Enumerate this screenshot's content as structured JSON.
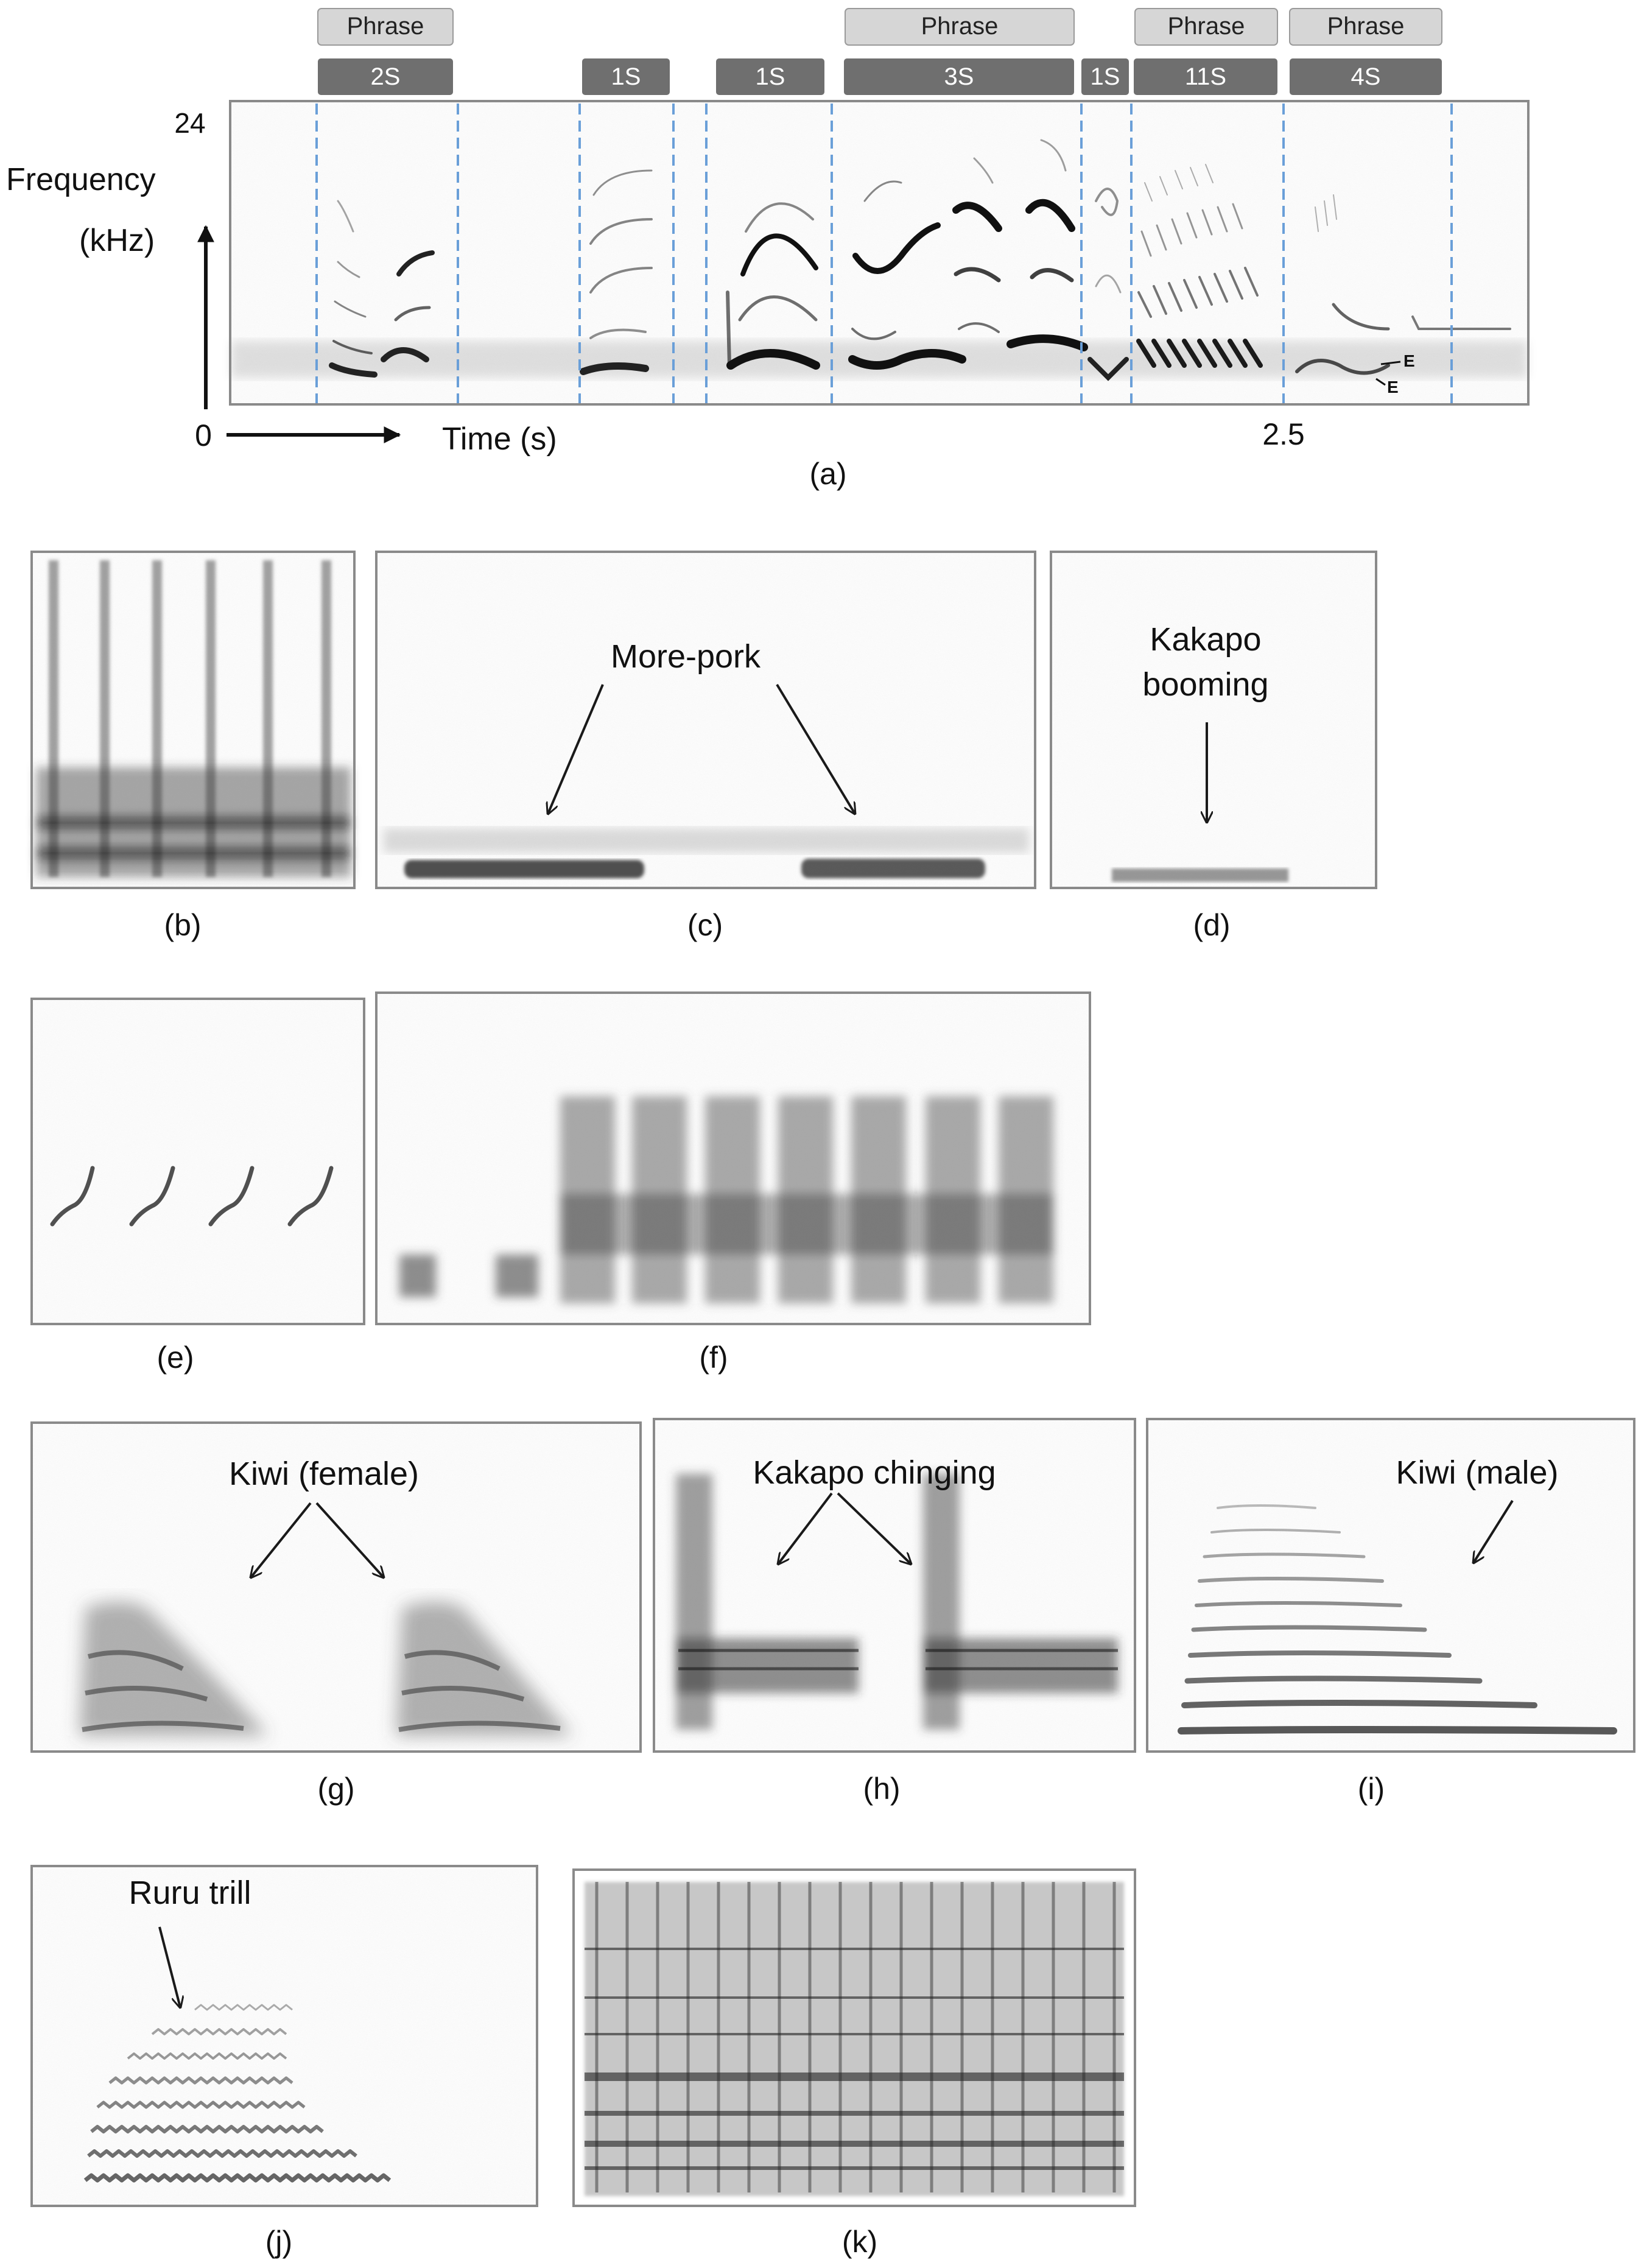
{
  "panel_a": {
    "phrase_tags": [
      "Phrase",
      "Phrase",
      "Phrase",
      "Phrase"
    ],
    "segment_tags": [
      "2S",
      "1S",
      "1S",
      "3S",
      "1S",
      "11S",
      "4S"
    ],
    "y_max": "24",
    "y_label_line1": "Frequency",
    "y_label_line2": "(kHz)",
    "origin": "0",
    "x_label": "Time (s)",
    "x_tick": "2.5",
    "e_labels": [
      "E",
      "E"
    ],
    "caption": "(a)"
  },
  "panels": {
    "b": {
      "caption": "(b)"
    },
    "c": {
      "caption": "(c)",
      "label": "More-pork"
    },
    "d": {
      "caption": "(d)",
      "label_line1": "Kakapo",
      "label_line2": "booming"
    },
    "e": {
      "caption": "(e)"
    },
    "f": {
      "caption": "(f)"
    },
    "g": {
      "caption": "(g)",
      "label": "Kiwi (female)"
    },
    "h": {
      "caption": "(h)",
      "label": "Kakapo chinging"
    },
    "i": {
      "caption": "(i)",
      "label": "Kiwi (male)"
    },
    "j": {
      "caption": "(j)",
      "label": "Ruru trill"
    },
    "k": {
      "caption": "(k)"
    }
  },
  "colors": {
    "tag_light": "#d6d6d6",
    "tag_dark": "#6f6f6f",
    "divider": "#6a9fd8",
    "frame": "#8a8a8a",
    "ink": "#2a2a2a"
  }
}
